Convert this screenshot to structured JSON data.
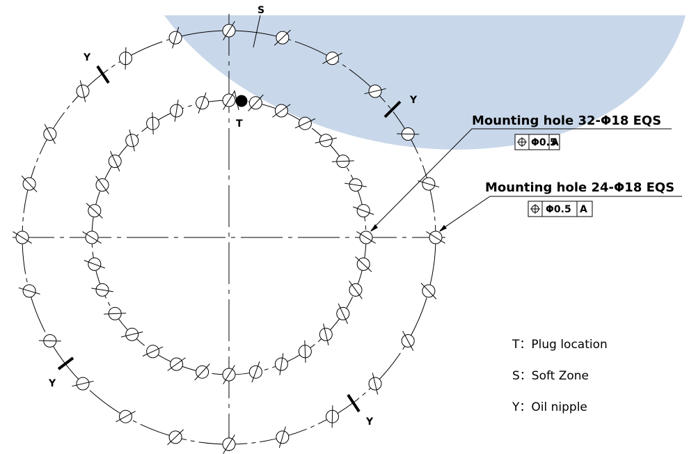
{
  "drawing": {
    "outer_ring": {
      "hole_count": 24,
      "spec": "Mounting hole 24-Φ18 EQS",
      "tolerance": "Φ0.5",
      "datum": "A"
    },
    "inner_ring": {
      "hole_count": 32,
      "spec": "Mounting hole 32-Φ18 EQS",
      "tolerance": "Φ0.5",
      "datum": "A"
    },
    "marks": {
      "soft_zone": "S",
      "plug": "T",
      "oil_nipple": "Y"
    },
    "legend": [
      {
        "code": "T",
        "text": "T：Plug location"
      },
      {
        "code": "S",
        "text": "S：Soft Zone"
      },
      {
        "code": "Y",
        "text": "Y：Oil nipple"
      }
    ],
    "watermark_color": "#c9d7ea"
  }
}
